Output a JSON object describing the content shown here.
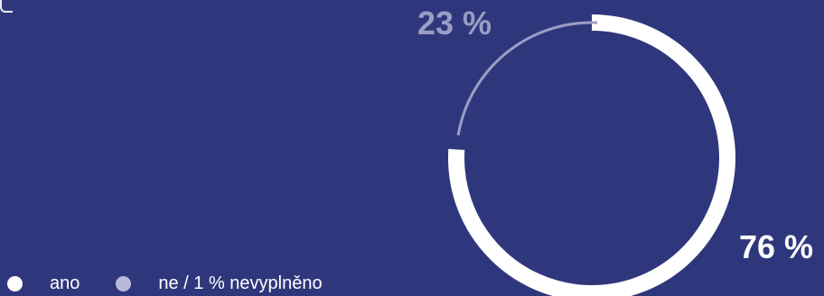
{
  "chart_data": {
    "type": "pie",
    "variant": "donut",
    "categories": [
      "ano",
      "ne / 1 % nevyplněno"
    ],
    "values": [
      76,
      23
    ],
    "value_labels": [
      "76 %",
      "23 %"
    ],
    "colors": [
      "#ffffff",
      "#9a9ec4"
    ],
    "background": "#2f377c",
    "legend_placement": "bottom-left"
  }
}
